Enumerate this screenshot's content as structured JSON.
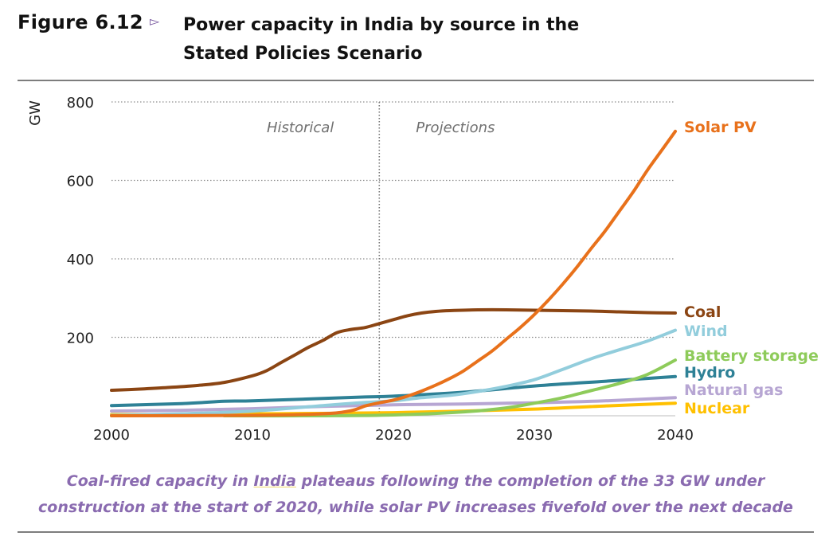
{
  "figure": {
    "label": "Figure 6.12",
    "arrow": "▻",
    "title": "Power capacity in India by source in the Stated Policies Scenario"
  },
  "caption": {
    "before": "Coal-fired capacity in ",
    "highlight": "India",
    "after": " plateaus following the completion of the 33 GW under construction at the start of 2020, while solar PV increases fivefold over the next decade"
  },
  "chart_data": {
    "type": "line",
    "title": "Power capacity in India by source in the Stated Policies Scenario",
    "xlabel": "",
    "ylabel": "GW",
    "xlim": [
      2000,
      2040
    ],
    "ylim": [
      0,
      800
    ],
    "xticks": [
      2000,
      2010,
      2020,
      2030,
      2040
    ],
    "yticks": [
      200,
      400,
      600,
      800
    ],
    "grid": "horizontal-dotted",
    "divider": {
      "x": 2019,
      "left_label": "Historical",
      "right_label": "Projections"
    },
    "series": [
      {
        "name": "Solar PV",
        "color": "#e8711b",
        "x": [
          2000,
          2010,
          2015,
          2017,
          2018,
          2019,
          2020,
          2021,
          2022,
          2023,
          2024,
          2025,
          2026,
          2027,
          2028,
          2029,
          2030,
          2031,
          2032,
          2033,
          2034,
          2035,
          2036,
          2037,
          2038,
          2039,
          2040
        ],
        "y": [
          0,
          1,
          5,
          13,
          25,
          33,
          40,
          50,
          63,
          78,
          95,
          115,
          140,
          165,
          195,
          225,
          258,
          295,
          335,
          378,
          425,
          470,
          520,
          570,
          625,
          675,
          725
        ]
      },
      {
        "name": "Coal",
        "color": "#8b4513",
        "x": [
          2000,
          2002,
          2004,
          2006,
          2008,
          2010,
          2011,
          2012,
          2013,
          2014,
          2015,
          2016,
          2017,
          2018,
          2019,
          2020,
          2021,
          2022,
          2023,
          2024,
          2026,
          2028,
          2030,
          2032,
          2034,
          2036,
          2038,
          2040
        ],
        "y": [
          65,
          68,
          72,
          77,
          85,
          102,
          115,
          135,
          155,
          175,
          192,
          212,
          220,
          225,
          235,
          245,
          255,
          262,
          266,
          268,
          270,
          270,
          269,
          268,
          267,
          265,
          263,
          262
        ]
      },
      {
        "name": "Wind",
        "color": "#92cddc",
        "x": [
          2000,
          2005,
          2010,
          2015,
          2018,
          2020,
          2022,
          2024,
          2026,
          2028,
          2030,
          2032,
          2034,
          2036,
          2038,
          2040
        ],
        "y": [
          1,
          5,
          12,
          26,
          34,
          38,
          46,
          52,
          62,
          75,
          92,
          118,
          145,
          168,
          190,
          218
        ]
      },
      {
        "name": "Battery storage",
        "color": "#8ecb5a",
        "x": [
          2008,
          2015,
          2020,
          2025,
          2028,
          2030,
          2032,
          2034,
          2036,
          2038,
          2040
        ],
        "y": [
          0,
          0,
          2,
          10,
          20,
          32,
          46,
          64,
          82,
          105,
          142
        ]
      },
      {
        "name": "Hydro",
        "color": "#2e8196",
        "x": [
          2000,
          2005,
          2008,
          2010,
          2015,
          2018,
          2020,
          2025,
          2030,
          2035,
          2040
        ],
        "y": [
          26,
          31,
          37,
          38,
          44,
          48,
          50,
          60,
          76,
          88,
          100
        ]
      },
      {
        "name": "Natural gas",
        "color": "#b7a6d3",
        "x": [
          2000,
          2005,
          2010,
          2015,
          2020,
          2025,
          2030,
          2035,
          2040
        ],
        "y": [
          12,
          14,
          18,
          24,
          28,
          30,
          33,
          38,
          46
        ]
      },
      {
        "name": "Nuclear",
        "color": "#ffc000",
        "x": [
          2000,
          2005,
          2010,
          2015,
          2020,
          2025,
          2030,
          2035,
          2040
        ],
        "y": [
          3,
          3,
          5,
          6,
          8,
          12,
          17,
          25,
          32
        ]
      }
    ]
  }
}
